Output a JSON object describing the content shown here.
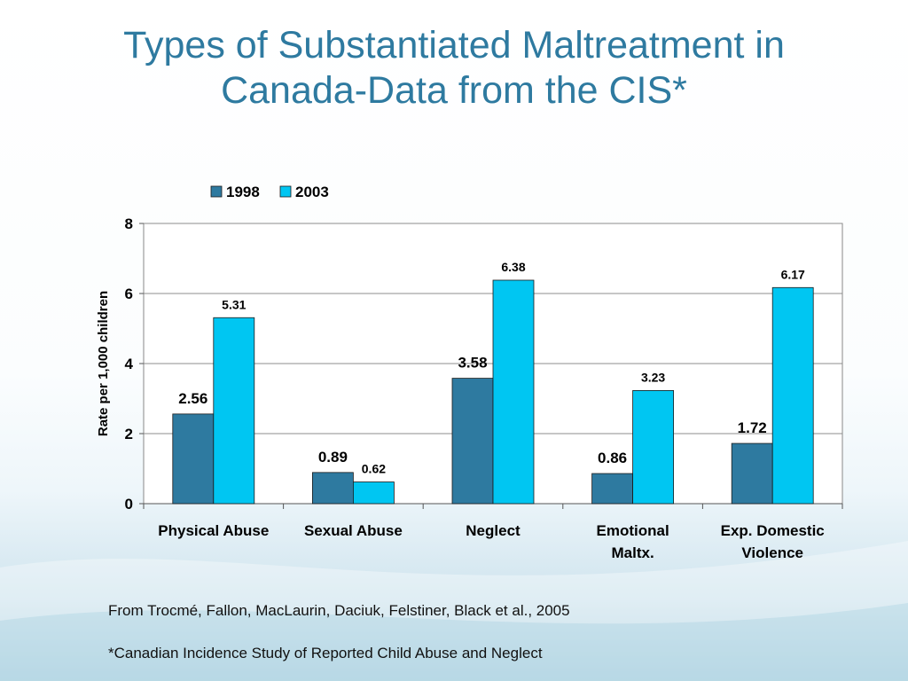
{
  "slide": {
    "title_line1": "Types of Substantiated Maltreatment in",
    "title_line2": "Canada-Data from the CIS*",
    "source_note": "From Trocmé, Fallon, MacLaurin, Daciuk, Felstiner, Black et al., 2005",
    "footnote": "*Canadian Incidence Study of Reported Child Abuse and Neglect"
  },
  "colors": {
    "title": "#2e7aa0",
    "series_1998": "#2e7aa0",
    "series_2003": "#00c6f2"
  },
  "chart_data": {
    "type": "bar",
    "title": "",
    "xlabel": "",
    "ylabel": "Rate per 1,000 children",
    "ylim": [
      0,
      8
    ],
    "yticks": [
      0,
      2,
      4,
      6,
      8
    ],
    "grid": true,
    "legend": "top-center",
    "categories": [
      [
        "Physical Abuse"
      ],
      [
        "Sexual Abuse"
      ],
      [
        "Neglect"
      ],
      [
        "Emotional",
        "Maltx."
      ],
      [
        "Exp. Domestic",
        "Violence"
      ]
    ],
    "series": [
      {
        "name": "1998",
        "values": [
          2.56,
          0.89,
          3.58,
          0.86,
          1.72
        ]
      },
      {
        "name": "2003",
        "values": [
          5.31,
          0.62,
          6.38,
          3.23,
          6.17
        ]
      }
    ]
  }
}
